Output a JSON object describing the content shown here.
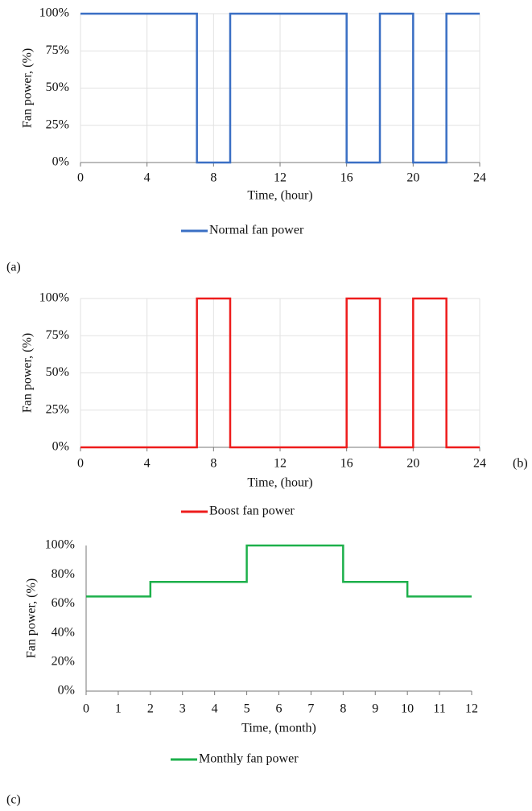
{
  "chart_data": [
    {
      "type": "line",
      "panel_label": "(a)",
      "x_label": "Time, (hour)",
      "y_label": "Fan power, (%)",
      "x": [
        0,
        7,
        7,
        9,
        9,
        16,
        16,
        18,
        18,
        20,
        20,
        22,
        22,
        24
      ],
      "series": [
        {
          "name": "Normal fan power",
          "color": "#3a6fc4",
          "values": [
            100,
            100,
            0,
            0,
            100,
            100,
            0,
            0,
            100,
            100,
            0,
            0,
            100,
            100
          ]
        }
      ],
      "xlim": [
        0,
        24
      ],
      "xticks": [
        0,
        4,
        8,
        12,
        16,
        20,
        24
      ],
      "ylim": [
        0,
        100
      ],
      "yticks": [
        {
          "value": 0,
          "label": "0%"
        },
        {
          "value": 25,
          "label": "25%"
        },
        {
          "value": 50,
          "label": "50%"
        },
        {
          "value": 75,
          "label": "75%"
        },
        {
          "value": 100,
          "label": "100%"
        }
      ],
      "grid": true
    },
    {
      "type": "line",
      "panel_label": "(b)",
      "x_label": "Time, (hour)",
      "y_label": "Fan power, (%)",
      "x": [
        0,
        7,
        7,
        9,
        9,
        16,
        16,
        18,
        18,
        20,
        20,
        22,
        22,
        24
      ],
      "series": [
        {
          "name": "Boost fan power",
          "color": "#ee1c1c",
          "values": [
            0,
            0,
            100,
            100,
            0,
            0,
            100,
            100,
            0,
            0,
            100,
            100,
            0,
            0
          ]
        }
      ],
      "xlim": [
        0,
        24
      ],
      "xticks": [
        0,
        4,
        8,
        12,
        16,
        20,
        24
      ],
      "ylim": [
        0,
        100
      ],
      "yticks": [
        {
          "value": 0,
          "label": "0%"
        },
        {
          "value": 25,
          "label": "25%"
        },
        {
          "value": 50,
          "label": "50%"
        },
        {
          "value": 75,
          "label": "75%"
        },
        {
          "value": 100,
          "label": "100%"
        }
      ],
      "grid": true
    },
    {
      "type": "line",
      "panel_label": "(c)",
      "x_label": "Time, (month)",
      "y_label": "Fan power, (%)",
      "x": [
        0,
        2,
        2,
        5,
        5,
        8,
        8,
        10,
        10,
        12
      ],
      "series": [
        {
          "name": "Monthly fan power",
          "color": "#1db04b",
          "values": [
            65,
            65,
            75,
            75,
            100,
            100,
            75,
            75,
            65,
            65
          ]
        }
      ],
      "xlim": [
        0,
        12
      ],
      "xticks": [
        0,
        1,
        2,
        3,
        4,
        5,
        6,
        7,
        8,
        9,
        10,
        11,
        12
      ],
      "ylim": [
        0,
        100
      ],
      "yticks": [
        {
          "value": 0,
          "label": "0%"
        },
        {
          "value": 20,
          "label": "20%"
        },
        {
          "value": 40,
          "label": "40%"
        },
        {
          "value": 60,
          "label": "60%"
        },
        {
          "value": 80,
          "label": "80%"
        },
        {
          "value": 100,
          "label": "100%"
        }
      ],
      "grid": false
    }
  ]
}
